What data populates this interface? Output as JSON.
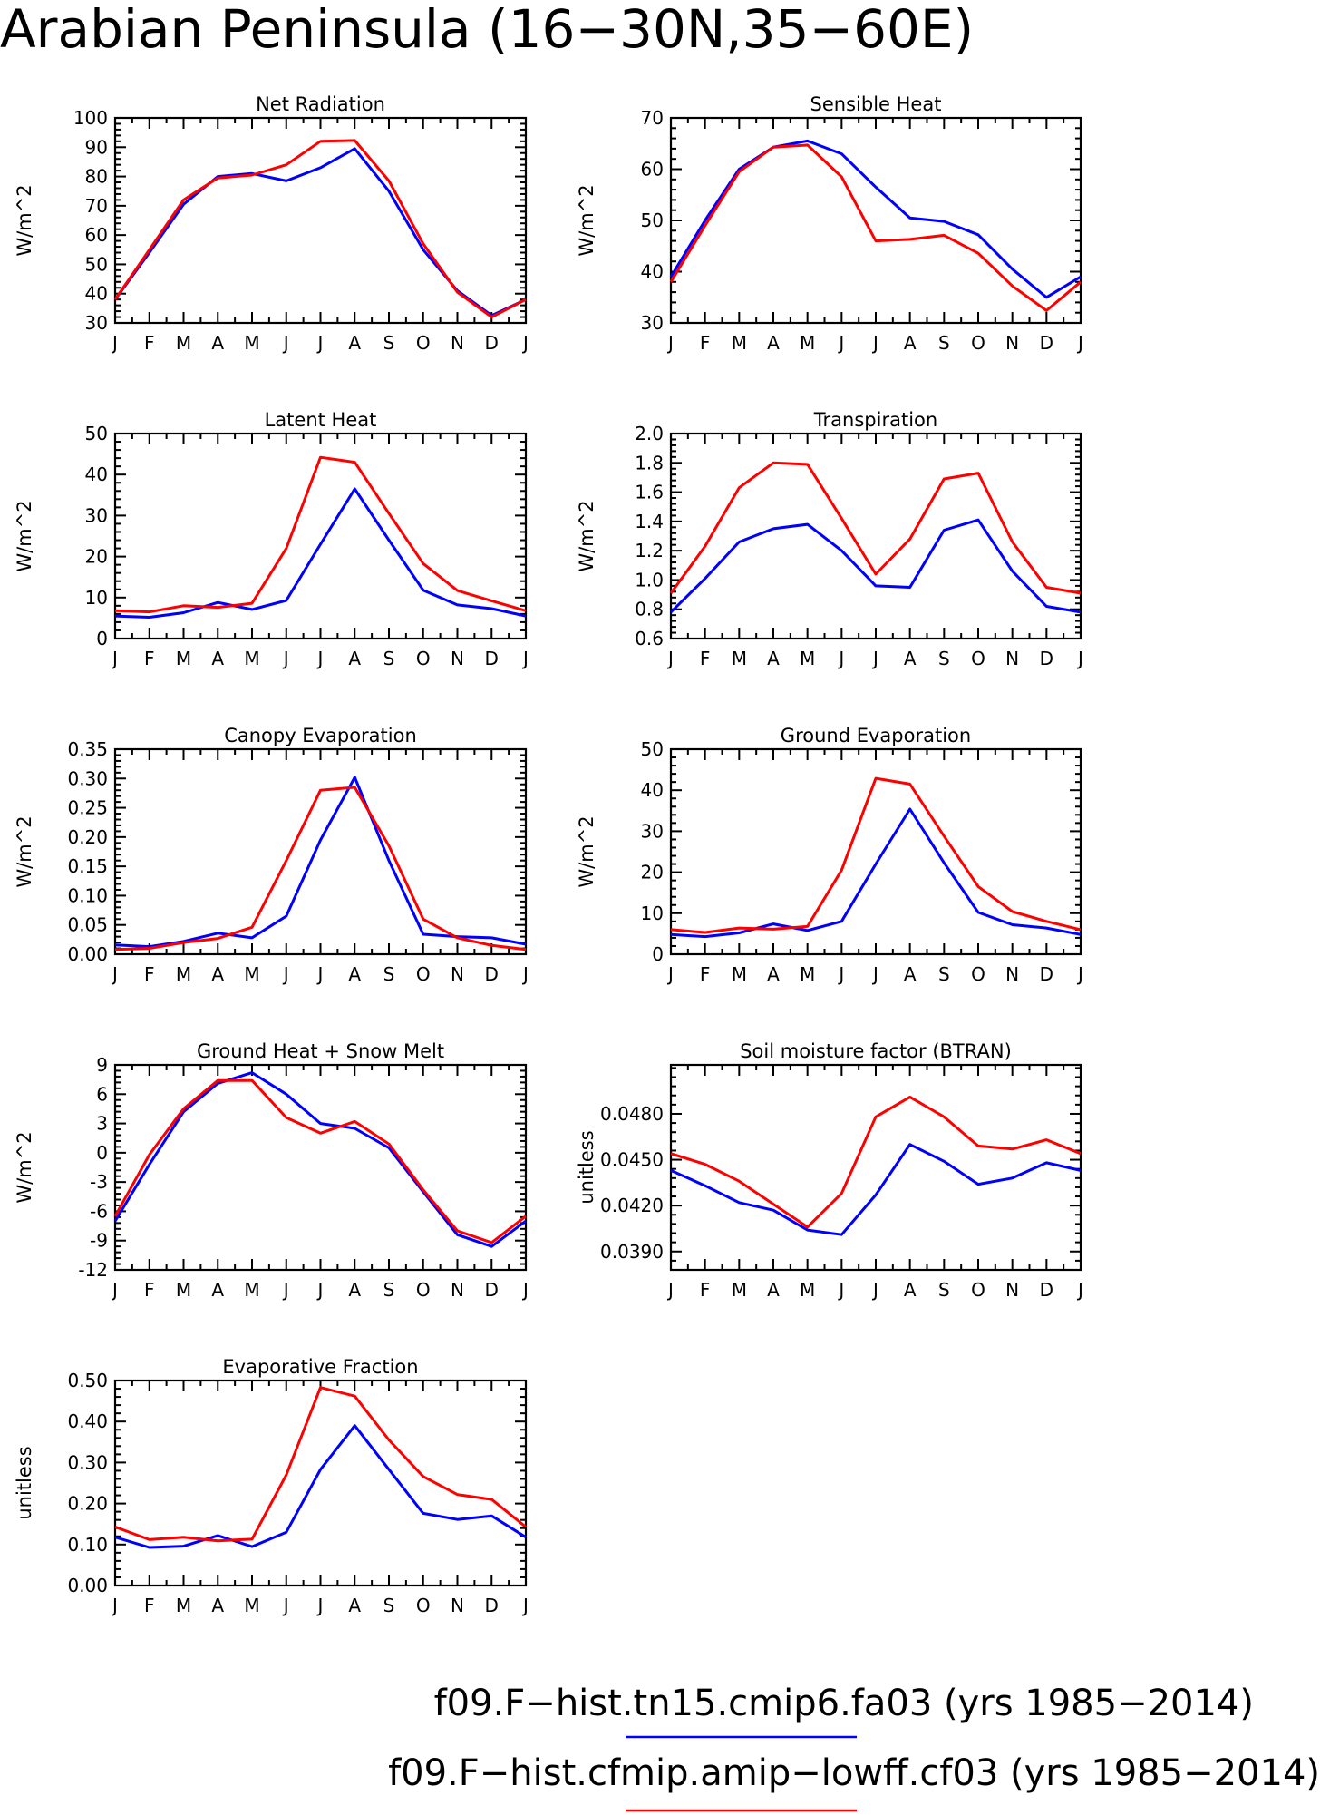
{
  "title": "Arabian Peninsula (16−30N,35−60E)",
  "colors": {
    "blue": "#0000ff",
    "red": "#ff0000"
  },
  "legend": [
    {
      "label": "f09.F−hist.tn15.cmip6.fa03 (yrs 1985−2014)",
      "color": "#0000ff"
    },
    {
      "label": "f09.F−hist.cfmip.amip−lowff.cf03 (yrs 1985−2014)",
      "color": "#ff0000"
    }
  ],
  "chart_data": [
    {
      "type": "line",
      "title": "Net Radiation",
      "ylabel": "W/m^2",
      "categories": [
        "J",
        "F",
        "M",
        "A",
        "M",
        "J",
        "J",
        "A",
        "S",
        "O",
        "N",
        "D",
        "J"
      ],
      "ylim": [
        30,
        100
      ],
      "yticks": [
        30,
        40,
        50,
        60,
        70,
        80,
        90,
        100
      ],
      "ytick_labels": [
        "30",
        "40",
        "50",
        "60",
        "70",
        "80",
        "90",
        "100"
      ],
      "series": [
        {
          "color": "#0000ff",
          "values": [
            38,
            54,
            70.5,
            80,
            81,
            78.5,
            83,
            89.5,
            75,
            55,
            41,
            32.5,
            38
          ]
        },
        {
          "color": "#ff0000",
          "values": [
            38,
            55,
            72,
            79.5,
            80.5,
            84,
            92,
            92.3,
            78.5,
            57,
            40.5,
            32,
            38
          ]
        }
      ]
    },
    {
      "type": "line",
      "title": "Sensible Heat",
      "ylabel": "W/m^2",
      "categories": [
        "J",
        "F",
        "M",
        "A",
        "M",
        "J",
        "J",
        "A",
        "S",
        "O",
        "N",
        "D",
        "J"
      ],
      "ylim": [
        30,
        70
      ],
      "yticks": [
        30,
        40,
        50,
        60,
        70
      ],
      "ytick_labels": [
        "30",
        "40",
        "50",
        "60",
        "70"
      ],
      "series": [
        {
          "color": "#0000ff",
          "values": [
            39,
            50,
            60,
            64.3,
            65.5,
            63,
            56.5,
            50.5,
            49.8,
            47.2,
            40.5,
            35,
            39
          ]
        },
        {
          "color": "#ff0000",
          "values": [
            38,
            49,
            59.5,
            64.3,
            64.7,
            58.5,
            46,
            46.3,
            47.1,
            43.6,
            37.2,
            32.4,
            38
          ]
        }
      ]
    },
    {
      "type": "line",
      "title": "Latent Heat",
      "ylabel": "W/m^2",
      "categories": [
        "J",
        "F",
        "M",
        "A",
        "M",
        "J",
        "J",
        "A",
        "S",
        "O",
        "N",
        "D",
        "J"
      ],
      "ylim": [
        0,
        50
      ],
      "yticks": [
        0,
        10,
        20,
        30,
        40,
        50
      ],
      "ytick_labels": [
        "0",
        "10",
        "20",
        "30",
        "40",
        "50"
      ],
      "series": [
        {
          "color": "#0000ff",
          "values": [
            5.5,
            5.2,
            6.3,
            8.8,
            7.1,
            9.3,
            23,
            36.5,
            24,
            11.8,
            8.2,
            7.3,
            5.5
          ]
        },
        {
          "color": "#ff0000",
          "values": [
            6.8,
            6.5,
            8,
            7.6,
            8.6,
            22,
            44.2,
            43,
            30.5,
            18.3,
            11.7,
            9.2,
            6.8
          ]
        }
      ]
    },
    {
      "type": "line",
      "title": "Transpiration",
      "ylabel": "W/m^2",
      "categories": [
        "J",
        "F",
        "M",
        "A",
        "M",
        "J",
        "J",
        "A",
        "S",
        "O",
        "N",
        "D",
        "J"
      ],
      "ylim": [
        0.6,
        2.0
      ],
      "yticks": [
        0.6,
        0.8,
        1.0,
        1.2,
        1.4,
        1.6,
        1.8,
        2.0
      ],
      "ytick_labels": [
        "0.6",
        "0.8",
        "1.0",
        "1.2",
        "1.4",
        "1.6",
        "1.8",
        "2.0"
      ],
      "series": [
        {
          "color": "#0000ff",
          "values": [
            0.78,
            1.01,
            1.26,
            1.35,
            1.38,
            1.2,
            0.96,
            0.95,
            1.34,
            1.41,
            1.06,
            0.82,
            0.78
          ]
        },
        {
          "color": "#ff0000",
          "values": [
            0.91,
            1.23,
            1.63,
            1.8,
            1.79,
            1.42,
            1.04,
            1.28,
            1.69,
            1.73,
            1.26,
            0.95,
            0.91
          ]
        }
      ]
    },
    {
      "type": "line",
      "title": "Canopy Evaporation",
      "ylabel": "W/m^2",
      "categories": [
        "J",
        "F",
        "M",
        "A",
        "M",
        "J",
        "J",
        "A",
        "S",
        "O",
        "N",
        "D",
        "J"
      ],
      "ylim": [
        0,
        0.35
      ],
      "yticks": [
        0,
        0.05,
        0.1,
        0.15,
        0.2,
        0.25,
        0.3,
        0.35
      ],
      "ytick_labels": [
        "0.00",
        "0.05",
        "0.10",
        "0.15",
        "0.20",
        "0.25",
        "0.30",
        "0.35"
      ],
      "series": [
        {
          "color": "#0000ff",
          "values": [
            0.016,
            0.013,
            0.022,
            0.036,
            0.028,
            0.065,
            0.195,
            0.302,
            0.16,
            0.034,
            0.03,
            0.028,
            0.017
          ]
        },
        {
          "color": "#ff0000",
          "values": [
            0.008,
            0.01,
            0.02,
            0.027,
            0.046,
            0.16,
            0.28,
            0.285,
            0.185,
            0.06,
            0.028,
            0.015,
            0.008
          ]
        }
      ]
    },
    {
      "type": "line",
      "title": "Ground Evaporation",
      "ylabel": "W/m^2",
      "categories": [
        "J",
        "F",
        "M",
        "A",
        "M",
        "J",
        "J",
        "A",
        "S",
        "O",
        "N",
        "D",
        "J"
      ],
      "ylim": [
        0,
        50
      ],
      "yticks": [
        0,
        10,
        20,
        30,
        40,
        50
      ],
      "ytick_labels": [
        "0",
        "10",
        "20",
        "30",
        "40",
        "50"
      ],
      "series": [
        {
          "color": "#0000ff",
          "values": [
            4.8,
            4.3,
            5.2,
            7.4,
            5.8,
            8,
            22,
            35.4,
            22.3,
            10.2,
            7.2,
            6.4,
            4.8
          ]
        },
        {
          "color": "#ff0000",
          "values": [
            6,
            5.3,
            6.4,
            6.1,
            6.8,
            20.5,
            42.9,
            41.5,
            28.8,
            16.5,
            10.4,
            8,
            6
          ]
        }
      ]
    },
    {
      "type": "line",
      "title": "Ground Heat + Snow Melt",
      "ylabel": "W/m^2",
      "categories": [
        "J",
        "F",
        "M",
        "A",
        "M",
        "J",
        "J",
        "A",
        "S",
        "O",
        "N",
        "D",
        "J"
      ],
      "ylim": [
        -12,
        9
      ],
      "yticks": [
        -12,
        -9,
        -6,
        -3,
        0,
        3,
        6,
        9
      ],
      "ytick_labels": [
        "-12",
        "-9",
        "-6",
        "-3",
        "0",
        "3",
        "6",
        "9"
      ],
      "series": [
        {
          "color": "#0000ff",
          "values": [
            -7,
            -1.2,
            4.2,
            7.1,
            8.2,
            6,
            3,
            2.5,
            0.5,
            -4,
            -8.4,
            -9.6,
            -7
          ]
        },
        {
          "color": "#ff0000",
          "values": [
            -6.5,
            -0.2,
            4.5,
            7.4,
            7.4,
            3.6,
            2,
            3.2,
            0.9,
            -3.8,
            -8,
            -9.2,
            -6.5
          ]
        }
      ]
    },
    {
      "type": "line",
      "title": "Soil moisture factor (BTRAN)",
      "ylabel": "unitless",
      "categories": [
        "J",
        "F",
        "M",
        "A",
        "M",
        "J",
        "J",
        "A",
        "S",
        "O",
        "N",
        "D",
        "J"
      ],
      "ylim": [
        0.0378,
        0.0512
      ],
      "yticks": [
        0.039,
        0.042,
        0.045,
        0.048
      ],
      "ytick_labels": [
        "0.0390",
        "0.0420",
        "0.0450",
        "0.0480"
      ],
      "series": [
        {
          "color": "#0000ff",
          "values": [
            0.0443,
            0.0433,
            0.0422,
            0.0417,
            0.0404,
            0.0401,
            0.0427,
            0.046,
            0.0449,
            0.0434,
            0.0438,
            0.0448,
            0.0443
          ]
        },
        {
          "color": "#ff0000",
          "values": [
            0.0454,
            0.0447,
            0.0436,
            0.0421,
            0.0406,
            0.0428,
            0.0478,
            0.0491,
            0.0478,
            0.0459,
            0.0457,
            0.0463,
            0.0454
          ]
        }
      ]
    },
    {
      "type": "line",
      "title": "Evaporative Fraction",
      "ylabel": "unitless",
      "categories": [
        "J",
        "F",
        "M",
        "A",
        "M",
        "J",
        "J",
        "A",
        "S",
        "O",
        "N",
        "D",
        "J"
      ],
      "ylim": [
        0,
        0.5
      ],
      "yticks": [
        0,
        0.1,
        0.2,
        0.3,
        0.4,
        0.5
      ],
      "ytick_labels": [
        "0.00",
        "0.10",
        "0.20",
        "0.30",
        "0.40",
        "0.50"
      ],
      "series": [
        {
          "color": "#0000ff",
          "values": [
            0.118,
            0.093,
            0.096,
            0.122,
            0.095,
            0.13,
            0.283,
            0.39,
            0.283,
            0.176,
            0.161,
            0.17,
            0.118
          ]
        },
        {
          "color": "#ff0000",
          "values": [
            0.143,
            0.112,
            0.118,
            0.109,
            0.113,
            0.27,
            0.483,
            0.462,
            0.355,
            0.266,
            0.222,
            0.21,
            0.143
          ]
        }
      ]
    }
  ]
}
